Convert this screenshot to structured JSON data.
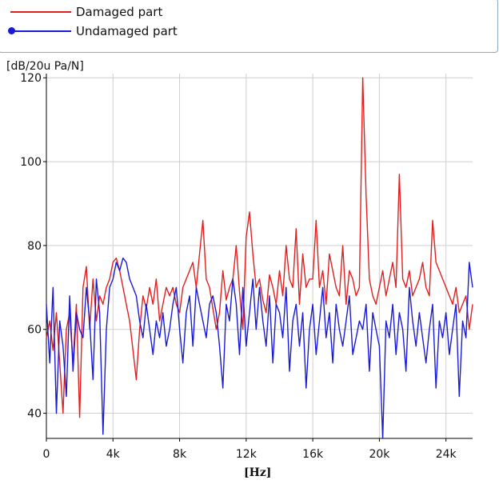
{
  "legend": {
    "items": [
      {
        "label": "Damaged part",
        "color": "#e02020",
        "marker": "none"
      },
      {
        "label": "Undamaged part",
        "color": "#1a1ad6",
        "marker": "circle"
      }
    ]
  },
  "chart_data": {
    "type": "line",
    "title": "",
    "xlabel": "[Hz]",
    "ylabel": "[dB/20u Pa/N]",
    "xlim": [
      0,
      25600
    ],
    "ylim": [
      34,
      121
    ],
    "grid": true,
    "legend_position": "top",
    "x_ticks": [
      {
        "value": 0,
        "label": "0"
      },
      {
        "value": 4000,
        "label": "4k"
      },
      {
        "value": 8000,
        "label": "8k"
      },
      {
        "value": 12000,
        "label": "12k"
      },
      {
        "value": 16000,
        "label": "16k"
      },
      {
        "value": 20000,
        "label": "20k"
      },
      {
        "value": 24000,
        "label": "24k"
      }
    ],
    "y_ticks": [
      {
        "value": 40,
        "label": "40"
      },
      {
        "value": 60,
        "label": "60"
      },
      {
        "value": 80,
        "label": "80"
      },
      {
        "value": 100,
        "label": "100"
      },
      {
        "value": 120,
        "label": "120"
      }
    ],
    "series": [
      {
        "name": "Damaged part",
        "color": "#e02020",
        "x": [
          0,
          200,
          400,
          600,
          800,
          1000,
          1200,
          1400,
          1600,
          1800,
          2000,
          2200,
          2400,
          2600,
          2800,
          3000,
          3200,
          3400,
          3600,
          3800,
          4000,
          4200,
          4400,
          4600,
          4800,
          5000,
          5200,
          5400,
          5600,
          5800,
          6000,
          6200,
          6400,
          6600,
          6800,
          7000,
          7200,
          7400,
          7600,
          7800,
          8000,
          8200,
          8400,
          8600,
          8800,
          9000,
          9200,
          9400,
          9600,
          9800,
          10000,
          10200,
          10400,
          10600,
          10800,
          11000,
          11200,
          11400,
          11600,
          11800,
          12000,
          12200,
          12400,
          12600,
          12800,
          13000,
          13200,
          13400,
          13600,
          13800,
          14000,
          14200,
          14400,
          14600,
          14800,
          15000,
          15200,
          15400,
          15600,
          15800,
          16000,
          16200,
          16400,
          16600,
          16800,
          17000,
          17200,
          17400,
          17600,
          17800,
          18000,
          18200,
          18400,
          18600,
          18800,
          19000,
          19200,
          19400,
          19600,
          19800,
          20000,
          20200,
          20400,
          20600,
          20800,
          21000,
          21200,
          21400,
          21600,
          21800,
          22000,
          22200,
          22400,
          22600,
          22800,
          23000,
          23200,
          23400,
          23600,
          23800,
          24000,
          24200,
          24400,
          24600,
          24800,
          25000,
          25200,
          25400,
          25600
        ],
        "y": [
          58,
          62,
          55,
          64,
          52,
          40,
          60,
          64,
          52,
          66,
          39,
          70,
          75,
          60,
          72,
          62,
          68,
          66,
          70,
          72,
          76,
          77,
          74,
          70,
          66,
          62,
          55,
          48,
          60,
          68,
          65,
          70,
          66,
          72,
          62,
          66,
          70,
          68,
          70,
          66,
          64,
          70,
          72,
          74,
          76,
          70,
          78,
          86,
          72,
          70,
          65,
          60,
          64,
          74,
          67,
          70,
          72,
          80,
          69,
          60,
          82,
          88,
          78,
          70,
          72,
          67,
          64,
          73,
          70,
          66,
          74,
          68,
          80,
          72,
          70,
          84,
          66,
          78,
          70,
          72,
          72,
          86,
          70,
          74,
          66,
          78,
          74,
          70,
          68,
          80,
          66,
          74,
          72,
          68,
          70,
          120,
          92,
          72,
          68,
          66,
          70,
          74,
          68,
          72,
          76,
          70,
          97,
          72,
          70,
          74,
          68,
          70,
          72,
          76,
          70,
          68,
          86,
          76,
          74,
          72,
          70,
          68,
          66,
          70,
          64,
          66,
          68,
          60,
          66
        ],
        "values": [
          58,
          62,
          55,
          64,
          52,
          40,
          60,
          64,
          52,
          66,
          39,
          70,
          75,
          60,
          72,
          62,
          68,
          66,
          70,
          72,
          76,
          77,
          74,
          70,
          66,
          62,
          55,
          48,
          60,
          68,
          65,
          70,
          66,
          72,
          62,
          66,
          70,
          68,
          70,
          66,
          64,
          70,
          72,
          74,
          76,
          70,
          78,
          86,
          72,
          70,
          65,
          60,
          64,
          74,
          67,
          70,
          72,
          80,
          69,
          60,
          82,
          88,
          78,
          70,
          72,
          67,
          64,
          73,
          70,
          66,
          74,
          68,
          80,
          72,
          70,
          84,
          66,
          78,
          70,
          72,
          72,
          86,
          70,
          74,
          66,
          78,
          74,
          70,
          68,
          80,
          66,
          74,
          72,
          68,
          70,
          120,
          92,
          72,
          68,
          66,
          70,
          74,
          68,
          72,
          76,
          70,
          97,
          72,
          70,
          74,
          68,
          70,
          72,
          76,
          70,
          68,
          86,
          76,
          74,
          72,
          70,
          68,
          66,
          70,
          64,
          66,
          68,
          60,
          66
        ]
      },
      {
        "name": "Undamaged part",
        "color": "#1a1ad6",
        "x": [
          0,
          200,
          400,
          600,
          800,
          1000,
          1200,
          1400,
          1600,
          1800,
          2000,
          2200,
          2400,
          2600,
          2800,
          3000,
          3200,
          3400,
          3600,
          3800,
          4000,
          4200,
          4400,
          4600,
          4800,
          5000,
          5200,
          5400,
          5600,
          5800,
          6000,
          6200,
          6400,
          6600,
          6800,
          7000,
          7200,
          7400,
          7600,
          7800,
          8000,
          8200,
          8400,
          8600,
          8800,
          9000,
          9200,
          9400,
          9600,
          9800,
          10000,
          10200,
          10400,
          10600,
          10800,
          11000,
          11200,
          11400,
          11600,
          11800,
          12000,
          12200,
          12400,
          12600,
          12800,
          13000,
          13200,
          13400,
          13600,
          13800,
          14000,
          14200,
          14400,
          14600,
          14800,
          15000,
          15200,
          15400,
          15600,
          15800,
          16000,
          16200,
          16400,
          16600,
          16800,
          17000,
          17200,
          17400,
          17600,
          17800,
          18000,
          18200,
          18400,
          18600,
          18800,
          19000,
          19200,
          19400,
          19600,
          19800,
          20000,
          20200,
          20400,
          20600,
          20800,
          21000,
          21200,
          21400,
          21600,
          21800,
          22000,
          22200,
          22400,
          22600,
          22800,
          23000,
          23200,
          23400,
          23600,
          23800,
          24000,
          24200,
          24400,
          24600,
          24800,
          25000,
          25200,
          25400,
          25600
        ],
        "y": [
          66,
          52,
          70,
          40,
          62,
          56,
          44,
          68,
          50,
          64,
          60,
          58,
          70,
          62,
          48,
          72,
          64,
          35,
          60,
          70,
          72,
          76,
          74,
          77,
          76,
          72,
          70,
          68,
          62,
          58,
          66,
          60,
          54,
          62,
          58,
          64,
          56,
          60,
          66,
          70,
          60,
          52,
          64,
          68,
          56,
          70,
          66,
          62,
          58,
          66,
          68,
          64,
          56,
          46,
          66,
          62,
          72,
          66,
          54,
          70,
          56,
          64,
          72,
          60,
          70,
          62,
          56,
          68,
          52,
          66,
          64,
          58,
          70,
          50,
          62,
          66,
          56,
          64,
          46,
          60,
          66,
          54,
          62,
          70,
          58,
          64,
          52,
          66,
          60,
          56,
          62,
          68,
          54,
          58,
          62,
          60,
          66,
          50,
          64,
          60,
          56,
          34,
          62,
          58,
          66,
          54,
          64,
          60,
          50,
          70,
          62,
          56,
          64,
          58,
          52,
          60,
          66,
          46,
          62,
          58,
          64,
          54,
          60,
          66,
          44,
          62,
          58,
          76,
          70
        ]
      }
    ]
  }
}
